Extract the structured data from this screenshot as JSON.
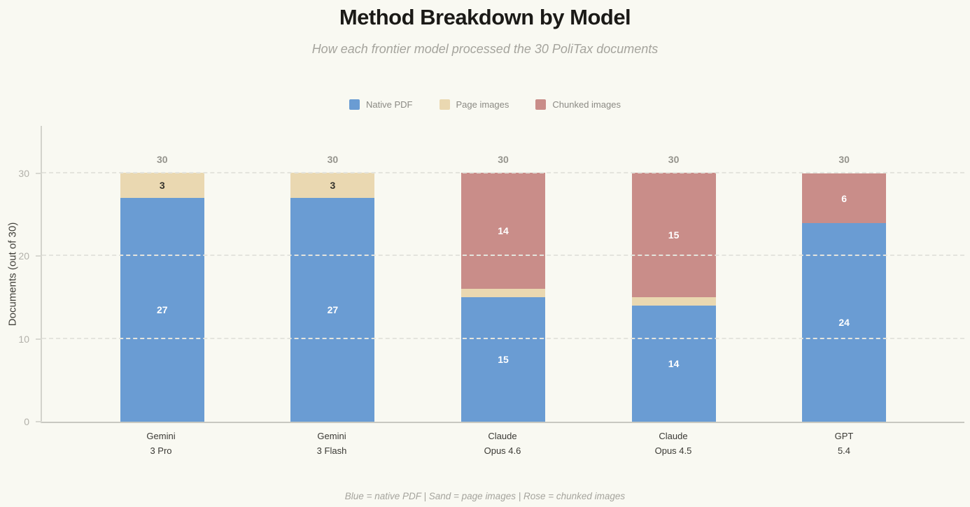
{
  "footer_note": "Blue = native PDF | Sand = page images | Rose = chunked images",
  "colors": {
    "background": "#F9F9F2",
    "native_pdf_blue": "#6A9CD3",
    "page_images_sand": "#EAD8B1",
    "chunked_images_rose": "#C98D89",
    "gridline": "#E4E4DD",
    "spine": "#D3D3CC",
    "tick_text": "#B2B1AA",
    "total_text": "#95948D"
  },
  "chart_data": {
    "type": "bar",
    "stacked": true,
    "title": "Method Breakdown by Model",
    "subtitle": "How each frontier model processed the 30 PoliTax documents",
    "xlabel": "",
    "ylabel": "Documents (out of 30)",
    "ylim": [
      0,
      36
    ],
    "yticks": [
      0,
      10,
      20,
      30
    ],
    "grid": "horizontal dashed",
    "legend_position": "top center",
    "categories": [
      "Gemini\n3 Pro",
      "Gemini\n3 Flash",
      "Claude\nOpus 4.6",
      "Claude\nOpus 4.5",
      "GPT\n5.4"
    ],
    "series": [
      {
        "name": "Native PDF",
        "color": "#6A9CD3",
        "label_color": "#FFFFFF",
        "values": [
          27,
          27,
          15,
          14,
          24
        ]
      },
      {
        "name": "Page images",
        "color": "#EAD8B1",
        "label_color": "#33322C",
        "values": [
          3,
          3,
          1,
          1,
          0
        ]
      },
      {
        "name": "Chunked images",
        "color": "#C98D89",
        "label_color": "#FFFFFF",
        "values": [
          0,
          0,
          14,
          15,
          6
        ]
      }
    ],
    "totals": [
      30,
      30,
      30,
      30,
      30
    ]
  }
}
